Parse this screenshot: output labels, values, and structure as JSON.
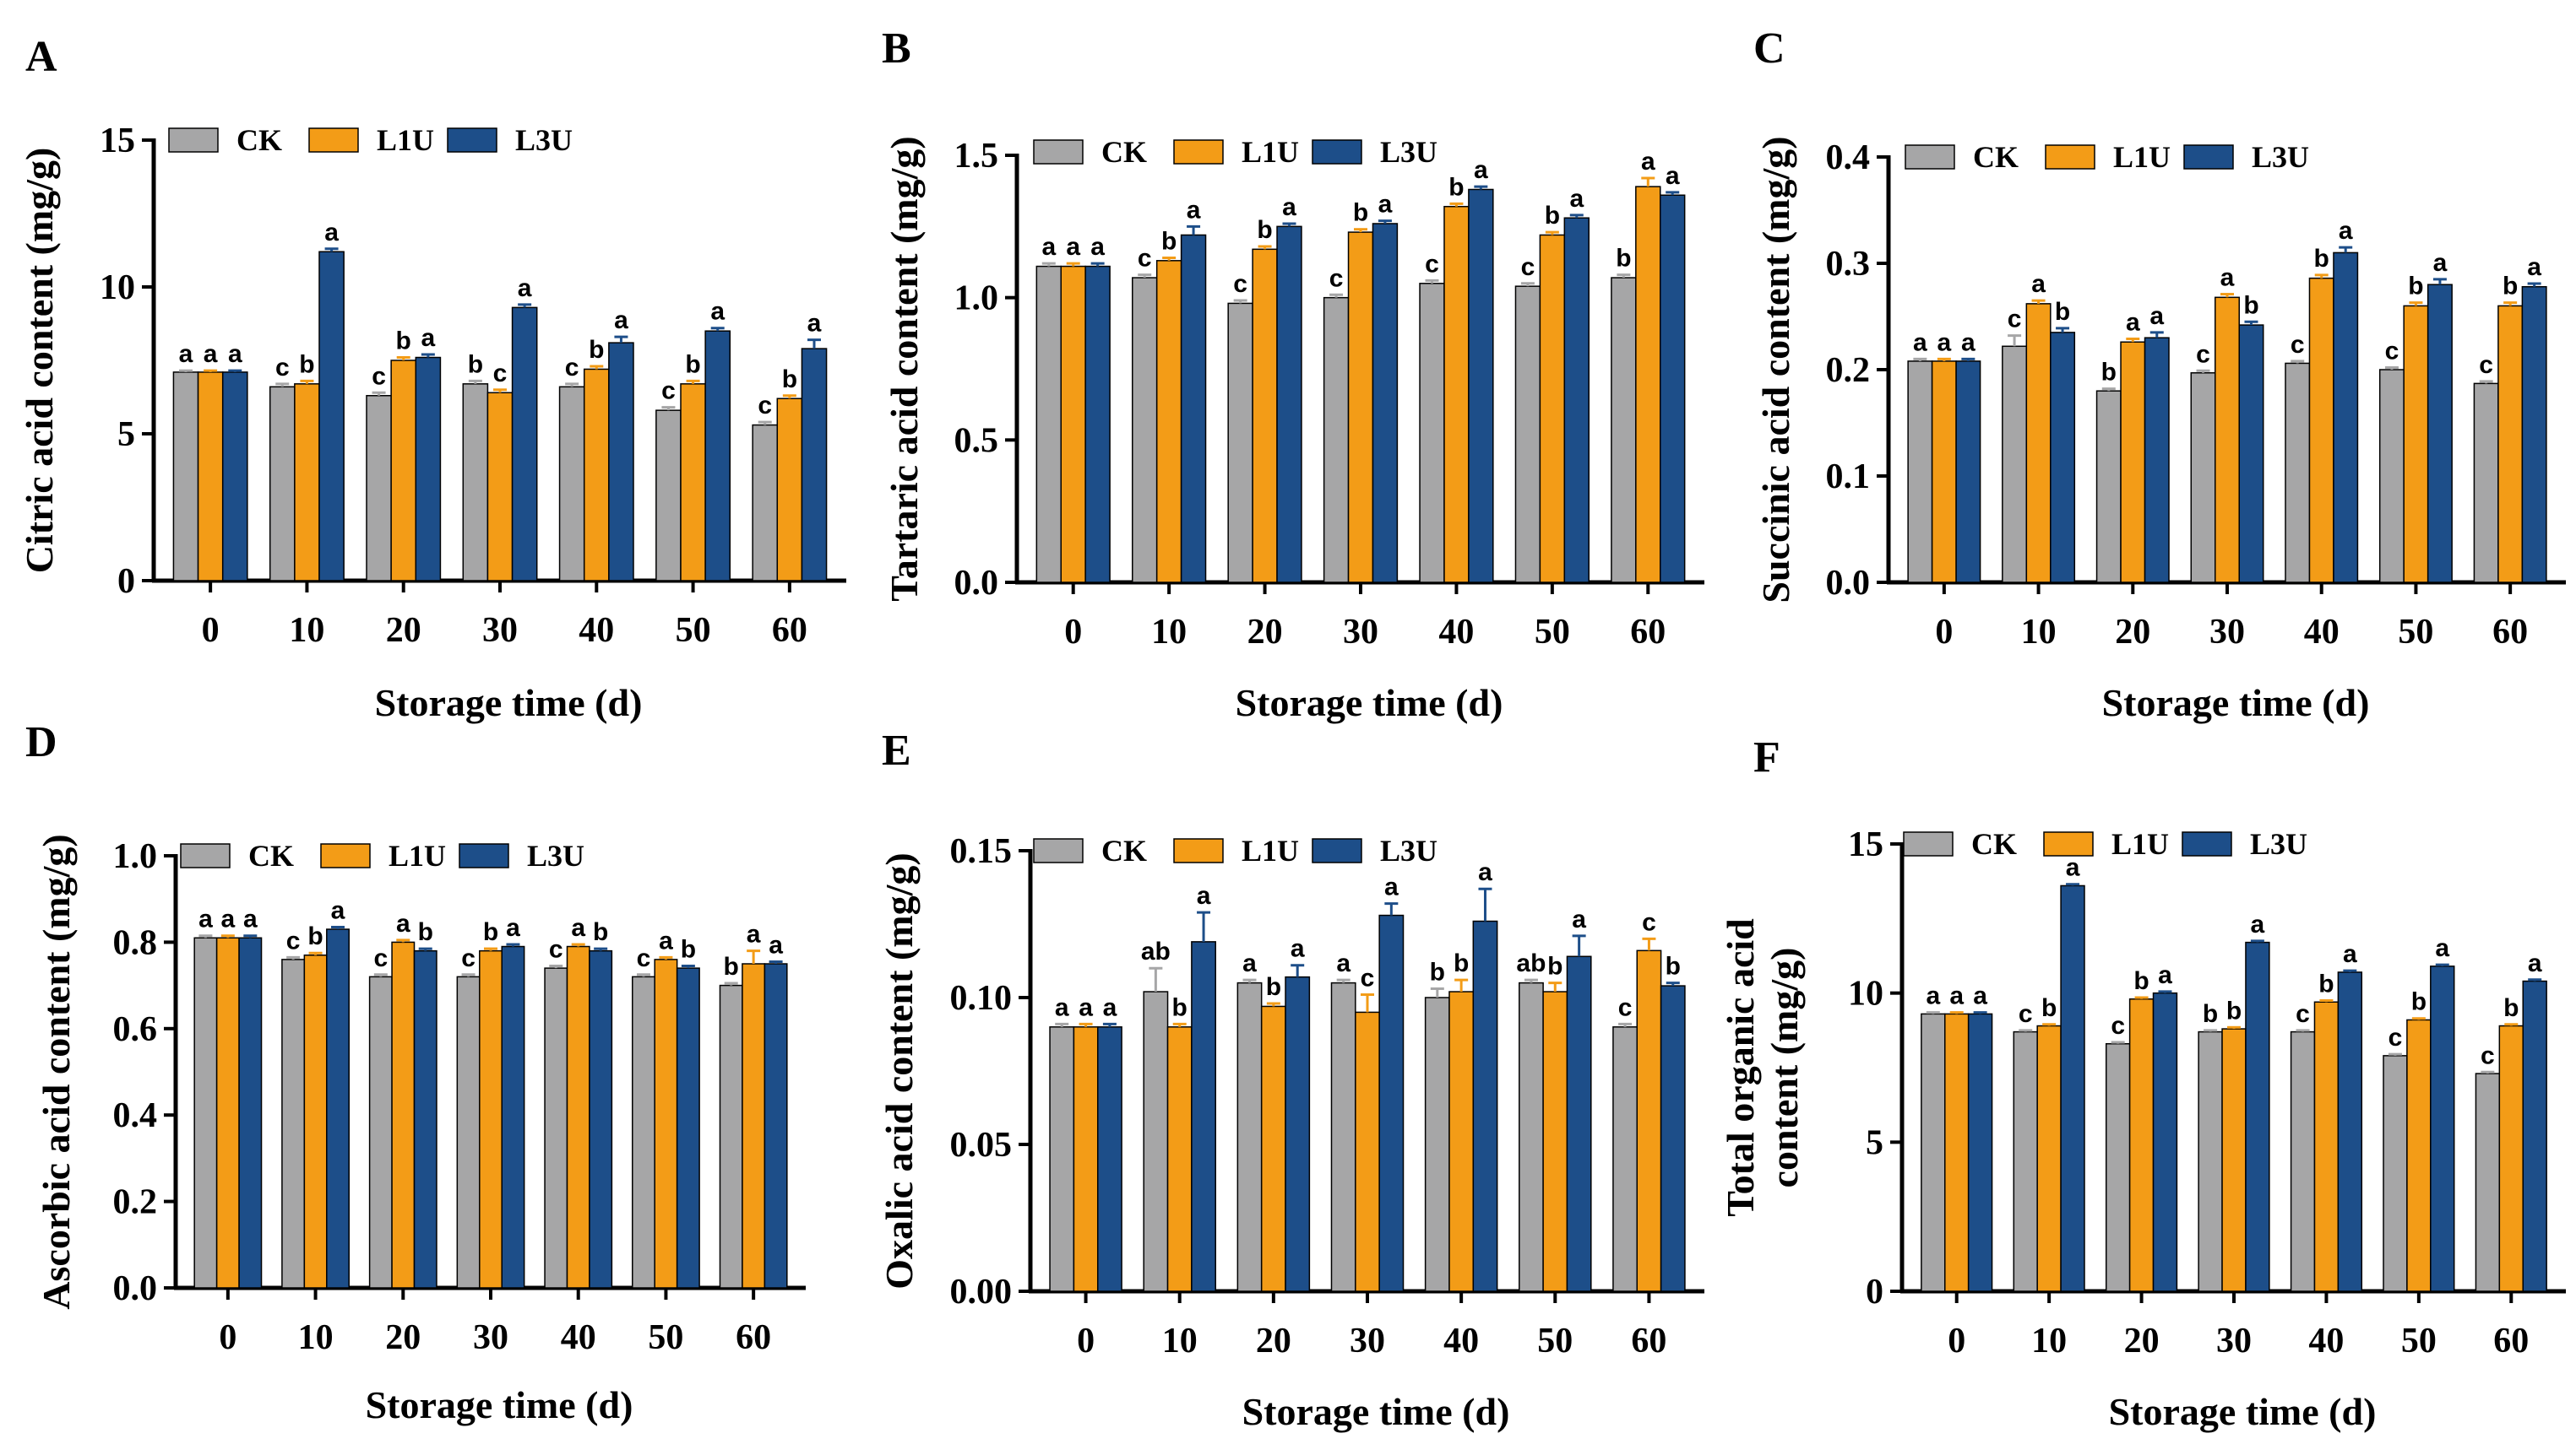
{
  "figure": {
    "title": ""
  },
  "colors": {
    "CK": "#A6A6A7",
    "L1U": "#F39C17",
    "L3U": "#1D4E89",
    "axis": "#000000"
  },
  "chart_data": [
    {
      "panel": "A",
      "type": "bar",
      "ylabel": "Citric acid content (mg/g)",
      "xlabel": "Storage time (d)",
      "categories": [
        "0",
        "10",
        "20",
        "30",
        "40",
        "50",
        "60"
      ],
      "ylim": [
        0,
        15
      ],
      "yticks": [
        0,
        5,
        10,
        15
      ],
      "ytick_labels": [
        "0",
        "5",
        "10",
        "15"
      ],
      "legend": [
        "CK",
        "L1U",
        "L3U"
      ],
      "legend_position": "top-left",
      "series": [
        {
          "name": "CK",
          "values": [
            7.1,
            6.6,
            6.3,
            6.7,
            6.6,
            5.8,
            5.3
          ],
          "errors": [
            0.05,
            0.1,
            0.1,
            0.1,
            0.1,
            0.1,
            0.1
          ],
          "letters": [
            "a",
            "c",
            "c",
            "b",
            "c",
            "c",
            "c"
          ]
        },
        {
          "name": "L1U",
          "values": [
            7.1,
            6.7,
            7.5,
            6.4,
            7.2,
            6.7,
            6.2
          ],
          "errors": [
            0.05,
            0.1,
            0.1,
            0.1,
            0.1,
            0.1,
            0.1
          ],
          "letters": [
            "a",
            "b",
            "b",
            "c",
            "b",
            "b",
            "b"
          ]
        },
        {
          "name": "L3U",
          "values": [
            7.1,
            11.2,
            7.6,
            9.3,
            8.1,
            8.5,
            7.9
          ],
          "errors": [
            0.05,
            0.1,
            0.1,
            0.1,
            0.2,
            0.1,
            0.3
          ],
          "letters": [
            "a",
            "a",
            "a",
            "a",
            "a",
            "a",
            "a"
          ]
        }
      ]
    },
    {
      "panel": "B",
      "type": "bar",
      "ylabel": "Tartaric acid content (mg/g)",
      "xlabel": "Storage time (d)",
      "categories": [
        "0",
        "10",
        "20",
        "30",
        "40",
        "50",
        "60"
      ],
      "ylim": [
        0,
        1.5
      ],
      "yticks": [
        0,
        0.5,
        1.0,
        1.5
      ],
      "ytick_labels": [
        "0.0",
        "0.5",
        "1.0",
        "1.5"
      ],
      "legend": [
        "CK",
        "L1U",
        "L3U"
      ],
      "legend_position": "top-left",
      "series": [
        {
          "name": "CK",
          "values": [
            1.11,
            1.07,
            0.98,
            1.0,
            1.05,
            1.04,
            1.07
          ],
          "errors": [
            0.01,
            0.01,
            0.01,
            0.01,
            0.01,
            0.01,
            0.01
          ],
          "letters": [
            "a",
            "c",
            "c",
            "c",
            "c",
            "c",
            "b"
          ]
        },
        {
          "name": "L1U",
          "values": [
            1.11,
            1.13,
            1.17,
            1.23,
            1.32,
            1.22,
            1.39
          ],
          "errors": [
            0.01,
            0.01,
            0.01,
            0.01,
            0.01,
            0.01,
            0.03
          ],
          "letters": [
            "a",
            "b",
            "b",
            "b",
            "b",
            "b",
            "a"
          ]
        },
        {
          "name": "L3U",
          "values": [
            1.11,
            1.22,
            1.25,
            1.26,
            1.38,
            1.28,
            1.36
          ],
          "errors": [
            0.01,
            0.03,
            0.01,
            0.01,
            0.01,
            0.01,
            0.01
          ],
          "letters": [
            "a",
            "a",
            "a",
            "a",
            "a",
            "a",
            "a"
          ]
        }
      ]
    },
    {
      "panel": "C",
      "type": "bar",
      "ylabel": "Succinic acid content (mg/g)",
      "xlabel": "Storage time (d)",
      "categories": [
        "0",
        "10",
        "20",
        "30",
        "40",
        "50",
        "60"
      ],
      "ylim": [
        0,
        0.4
      ],
      "yticks": [
        0,
        0.1,
        0.2,
        0.3,
        0.4
      ],
      "ytick_labels": [
        "0.0",
        "0.1",
        "0.2",
        "0.3",
        "0.4"
      ],
      "legend": [
        "CK",
        "L1U",
        "L3U"
      ],
      "legend_position": "top-left",
      "series": [
        {
          "name": "CK",
          "values": [
            0.208,
            0.222,
            0.18,
            0.197,
            0.206,
            0.2,
            0.187
          ],
          "errors": [
            0.002,
            0.01,
            0.002,
            0.002,
            0.002,
            0.002,
            0.002
          ],
          "letters": [
            "a",
            "c",
            "b",
            "c",
            "c",
            "c",
            "c"
          ]
        },
        {
          "name": "L1U",
          "values": [
            0.208,
            0.262,
            0.226,
            0.268,
            0.286,
            0.26,
            0.26
          ],
          "errors": [
            0.002,
            0.003,
            0.003,
            0.003,
            0.003,
            0.003,
            0.003
          ],
          "letters": [
            "a",
            "a",
            "a",
            "a",
            "b",
            "b",
            "b"
          ]
        },
        {
          "name": "L3U",
          "values": [
            0.208,
            0.235,
            0.23,
            0.242,
            0.31,
            0.28,
            0.278
          ],
          "errors": [
            0.002,
            0.004,
            0.005,
            0.003,
            0.005,
            0.005,
            0.003
          ],
          "letters": [
            "a",
            "b",
            "a",
            "b",
            "a",
            "a",
            "a"
          ]
        }
      ]
    },
    {
      "panel": "D",
      "type": "bar",
      "ylabel": "Ascorbic acid content (mg/g)",
      "xlabel": "Storage time (d)",
      "categories": [
        "0",
        "10",
        "20",
        "30",
        "40",
        "50",
        "60"
      ],
      "ylim": [
        0,
        1.0
      ],
      "yticks": [
        0,
        0.2,
        0.4,
        0.6,
        0.8,
        1.0
      ],
      "ytick_labels": [
        "0.0",
        "0.2",
        "0.4",
        "0.6",
        "0.8",
        "1.0"
      ],
      "legend": [
        "CK",
        "L1U",
        "L3U"
      ],
      "legend_position": "top-right",
      "series": [
        {
          "name": "CK",
          "values": [
            0.81,
            0.76,
            0.72,
            0.72,
            0.74,
            0.72,
            0.7
          ],
          "errors": [
            0.005,
            0.005,
            0.005,
            0.005,
            0.005,
            0.005,
            0.005
          ],
          "letters": [
            "a",
            "c",
            "c",
            "c",
            "c",
            "c",
            "b"
          ]
        },
        {
          "name": "L1U",
          "values": [
            0.81,
            0.77,
            0.8,
            0.78,
            0.79,
            0.76,
            0.75
          ],
          "errors": [
            0.005,
            0.005,
            0.005,
            0.005,
            0.005,
            0.005,
            0.03
          ],
          "letters": [
            "a",
            "b",
            "a",
            "b",
            "a",
            "a",
            "a"
          ]
        },
        {
          "name": "L3U",
          "values": [
            0.81,
            0.83,
            0.78,
            0.79,
            0.78,
            0.74,
            0.75
          ],
          "errors": [
            0.005,
            0.005,
            0.005,
            0.005,
            0.005,
            0.005,
            0.005
          ],
          "letters": [
            "a",
            "a",
            "b",
            "a",
            "b",
            "b",
            "a"
          ]
        }
      ]
    },
    {
      "panel": "E",
      "type": "bar",
      "ylabel": "Oxalic acid content (mg/g)",
      "xlabel": "Storage time (d)",
      "categories": [
        "0",
        "10",
        "20",
        "30",
        "40",
        "50",
        "60"
      ],
      "ylim": [
        0,
        0.15
      ],
      "yticks": [
        0,
        0.05,
        0.1,
        0.15
      ],
      "ytick_labels": [
        "0.00",
        "0.05",
        "0.10",
        "0.15"
      ],
      "legend": [
        "CK",
        "L1U",
        "L3U"
      ],
      "legend_position": "top-left",
      "series": [
        {
          "name": "CK",
          "values": [
            0.09,
            0.102,
            0.105,
            0.105,
            0.1,
            0.105,
            0.09
          ],
          "errors": [
            0.001,
            0.008,
            0.001,
            0.001,
            0.003,
            0.001,
            0.001
          ],
          "letters": [
            "a",
            "ab",
            "a",
            "a",
            "b",
            "ab",
            "c"
          ]
        },
        {
          "name": "L1U",
          "values": [
            0.09,
            0.09,
            0.097,
            0.095,
            0.102,
            0.102,
            0.116
          ],
          "errors": [
            0.001,
            0.001,
            0.001,
            0.006,
            0.004,
            0.003,
            0.004
          ],
          "letters": [
            "a",
            "b",
            "b",
            "c",
            "b",
            "b",
            "c"
          ]
        },
        {
          "name": "L3U",
          "values": [
            0.09,
            0.119,
            0.107,
            0.128,
            0.126,
            0.114,
            0.104
          ],
          "errors": [
            0.001,
            0.01,
            0.004,
            0.004,
            0.011,
            0.007,
            0.001
          ],
          "letters": [
            "a",
            "a",
            "a",
            "a",
            "a",
            "a",
            "b"
          ]
        }
      ]
    },
    {
      "panel": "F",
      "type": "bar",
      "ylabel": [
        "Total organic acid",
        "content (mg/g)"
      ],
      "xlabel": "Storage time (d)",
      "categories": [
        "0",
        "10",
        "20",
        "30",
        "40",
        "50",
        "60"
      ],
      "ylim": [
        0,
        15
      ],
      "yticks": [
        0,
        5,
        10,
        15
      ],
      "ytick_labels": [
        "0",
        "5",
        "10",
        "15"
      ],
      "legend": [
        "CK",
        "L1U",
        "L3U"
      ],
      "legend_position": "top-left",
      "series": [
        {
          "name": "CK",
          "values": [
            9.3,
            8.7,
            8.3,
            8.7,
            8.7,
            7.9,
            7.3
          ],
          "errors": [
            0.05,
            0.05,
            0.05,
            0.05,
            0.05,
            0.05,
            0.05
          ],
          "letters": [
            "a",
            "c",
            "c",
            "b",
            "c",
            "c",
            "c"
          ]
        },
        {
          "name": "L1U",
          "values": [
            9.3,
            8.9,
            9.8,
            8.8,
            9.7,
            9.1,
            8.9
          ],
          "errors": [
            0.05,
            0.05,
            0.05,
            0.05,
            0.05,
            0.05,
            0.05
          ],
          "letters": [
            "a",
            "b",
            "b",
            "b",
            "b",
            "b",
            "b"
          ]
        },
        {
          "name": "L3U",
          "values": [
            9.3,
            13.6,
            10.0,
            11.7,
            10.7,
            10.9,
            10.4
          ],
          "errors": [
            0.05,
            0.05,
            0.05,
            0.05,
            0.05,
            0.05,
            0.05
          ],
          "letters": [
            "a",
            "a",
            "a",
            "a",
            "a",
            "a",
            "a"
          ]
        }
      ]
    }
  ]
}
